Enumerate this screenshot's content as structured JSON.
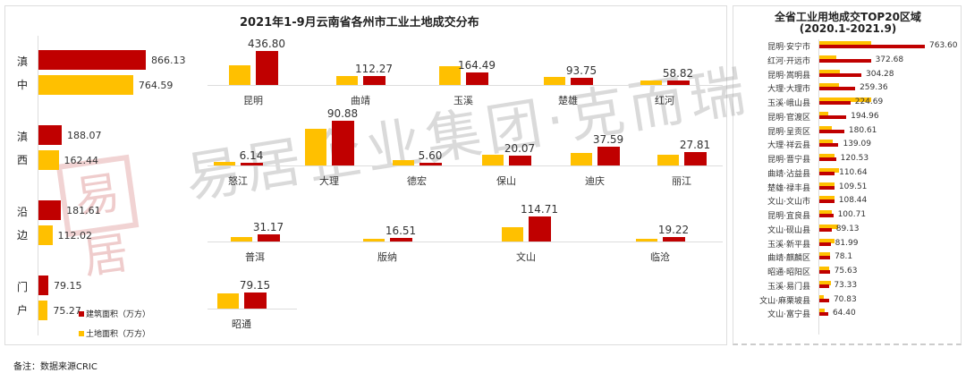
{
  "title": "2021年1-9月云南省各州市工业土地成交分布",
  "right_title_line1": "全省工业用地成交TOP20区域",
  "right_title_line2": "(2020.1-2021.9)",
  "legend": {
    "built": "建筑面积（万方）",
    "land": "土地面积（万方）"
  },
  "footer": "备注：数据来源CRIC",
  "watermark": "易居企业集团·克而瑞",
  "seal": "易居",
  "colors": {
    "built": "#c00000",
    "land": "#ffc000"
  },
  "chart_data": [
    {
      "type": "bar",
      "orientation": "horizontal",
      "title": "",
      "categories": [
        "滇中",
        "滇西",
        "沿边",
        "门户"
      ],
      "series": [
        {
          "name": "建筑面积（万方）",
          "values": [
            866.13,
            188.07,
            181.61,
            79.15
          ],
          "labels": [
            "866.13",
            "188.07",
            "181.61",
            "79.15"
          ]
        },
        {
          "name": "土地面积（万方）",
          "values": [
            764.59,
            162.44,
            112.02,
            75.27
          ],
          "labels": [
            "764.59",
            "162.44",
            "112.02",
            "75.27"
          ]
        }
      ]
    },
    {
      "type": "bar",
      "title": "2021年1-9月云南省各州市工业土地成交分布",
      "groups": [
        {
          "region": "滇中",
          "categories": [
            "昆明",
            "曲靖",
            "玉溪",
            "楚雄",
            "红河"
          ],
          "built": [
            436.8,
            112.27,
            164.49,
            93.75,
            58.82
          ],
          "built_labels": [
            "436.80",
            "112.27",
            "164.49",
            "93.75",
            "58.82"
          ],
          "land": [
            250,
            120,
            240,
            100,
            55
          ]
        },
        {
          "region": "滇西",
          "categories": [
            "怒江",
            "大理",
            "德宏",
            "保山",
            "迪庆",
            "丽江"
          ],
          "built": [
            6.14,
            90.88,
            5.6,
            20.07,
            37.59,
            27.81
          ],
          "built_labels": [
            "6.14",
            "90.88",
            "5.60",
            "20.07",
            "37.59",
            "27.81"
          ],
          "land": [
            8,
            75,
            11,
            21,
            25,
            22.44
          ]
        },
        {
          "region": "沿边",
          "categories": [
            "普洱",
            "版纳",
            "文山",
            "临沧"
          ],
          "built": [
            31.17,
            16.51,
            114.71,
            19.22
          ],
          "built_labels": [
            "31.17",
            "16.51",
            "114.71",
            "19.22"
          ],
          "land": [
            20,
            13,
            65,
            14.02
          ]
        },
        {
          "region": "门户",
          "categories": [
            "昭通"
          ],
          "built": [
            79.15
          ],
          "built_labels": [
            "79.15"
          ],
          "land": [
            75.27
          ]
        }
      ]
    },
    {
      "type": "bar",
      "orientation": "horizontal",
      "title": "全省工业用地成交TOP20区域 (2020.1-2021.9)",
      "categories": [
        "昆明·安宁市",
        "红河·开远市",
        "昆明·嵩明县",
        "大理·大理市",
        "玉溪·峨山县",
        "昆明·官渡区",
        "昆明·呈贡区",
        "大理·祥云县",
        "昆明·晋宁县",
        "曲靖·沾益县",
        "楚雄·禄丰县",
        "文山·文山市",
        "昆明·宜良县",
        "文山·砚山县",
        "玉溪·新平县",
        "曲靖·麒麟区",
        "昭通·昭阳区",
        "玉溪·易门县",
        "文山·麻栗坡县",
        "文山·富宁县"
      ],
      "built": [
        763.6,
        372.68,
        304.28,
        259.36,
        224.69,
        194.96,
        180.61,
        139.09,
        120.53,
        110.64,
        109.51,
        108.44,
        100.71,
        89.13,
        81.99,
        78.1,
        75.63,
        73.33,
        70.83,
        64.4
      ],
      "built_labels": [
        "763.60",
        "372.68",
        "304.28",
        "259.36",
        "224.69",
        "194.96",
        "180.61",
        "139.09",
        "120.53",
        "110.64",
        "109.51",
        "108.44",
        "100.71",
        "89.13",
        "81.99",
        "78.1",
        "75.63",
        "73.33",
        "70.83",
        "64.40"
      ],
      "land": [
        375,
        120,
        150,
        140,
        375,
        65,
        90,
        95,
        110,
        140,
        110,
        110,
        90,
        135,
        110,
        75,
        70,
        85,
        30,
        40
      ]
    }
  ]
}
